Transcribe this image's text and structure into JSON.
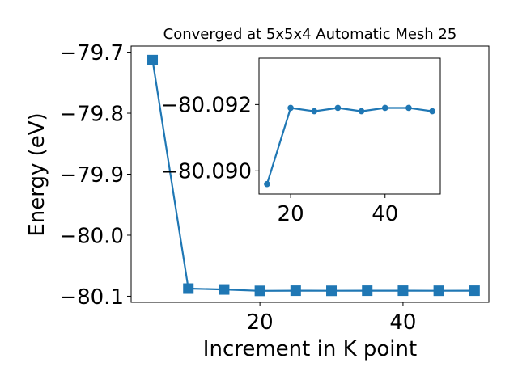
{
  "chart_data": [
    {
      "type": "line",
      "title": "Converged at 5x5x4 Automatic Mesh 25",
      "xlabel": "Increment in K point",
      "ylabel": "Energy (eV)",
      "xlim": [
        2,
        52
      ],
      "ylim": [
        -80.11,
        -79.69
      ],
      "xticks": [
        20,
        40
      ],
      "xtick_labels": [
        "20",
        "40"
      ],
      "yticks": [
        -79.7,
        -79.8,
        -79.9,
        -80.0,
        -80.1
      ],
      "ytick_labels": [
        "−79.7",
        "−79.8",
        "−79.9",
        "−80.0",
        "−80.1"
      ],
      "marker": "square",
      "color": "#1f77b4",
      "series": [
        {
          "x": [
            5,
            10,
            15,
            20,
            25,
            30,
            35,
            40,
            45,
            50
          ],
          "y": [
            -79.713,
            -80.0875,
            -80.0889,
            -80.0912,
            -80.0909,
            -80.0911,
            -80.0909,
            -80.0909,
            -80.091,
            -80.0909
          ]
        }
      ]
    },
    {
      "type": "line",
      "title": "",
      "xlabel": "",
      "ylabel": "",
      "xlim": [
        13.3,
        51.7
      ],
      "ylim": [
        -80.0934,
        -80.0893
      ],
      "y_inverted": true,
      "xticks": [
        20,
        40
      ],
      "xtick_labels": [
        "20",
        "40"
      ],
      "yticks": [
        -80.092,
        -80.09
      ],
      "ytick_labels": [
        "−80.092",
        "−80.090"
      ],
      "marker": "circle",
      "color": "#1f77b4",
      "series": [
        {
          "x": [
            15,
            20,
            25,
            30,
            35,
            40,
            45,
            50
          ],
          "y": [
            -80.0896,
            -80.0919,
            -80.0918,
            -80.0919,
            -80.0918,
            -80.0919,
            -80.0919,
            -80.0918
          ]
        }
      ]
    }
  ]
}
